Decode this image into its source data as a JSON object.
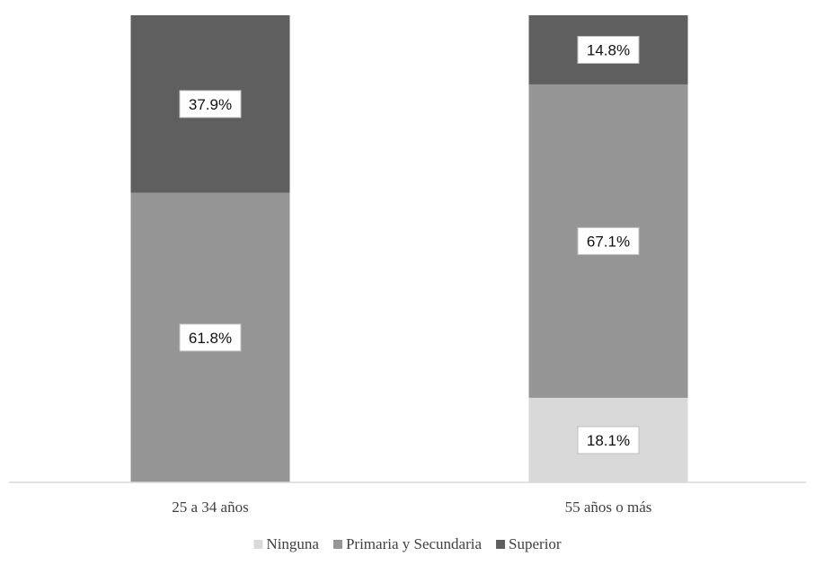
{
  "chart_data": {
    "type": "bar",
    "stacked": true,
    "title": "",
    "xlabel": "",
    "ylabel": "",
    "ylim": [
      0,
      100
    ],
    "grid": false,
    "legend_position": "bottom",
    "categories": [
      "25 a 34 años",
      "55 años o más"
    ],
    "series": [
      {
        "name": "Ninguna",
        "values": [
          0,
          18.1
        ],
        "labels": [
          "",
          "18.1%"
        ],
        "color": "#d9d9d9"
      },
      {
        "name": "Primaria y Secundaria",
        "values": [
          61.8,
          67.1
        ],
        "labels": [
          "61.8%",
          "67.1%"
        ],
        "color": "#959595"
      },
      {
        "name": "Superior",
        "values": [
          37.9,
          14.8
        ],
        "labels": [
          "37.9%",
          "14.8%"
        ],
        "color": "#5f5f5f"
      }
    ]
  }
}
